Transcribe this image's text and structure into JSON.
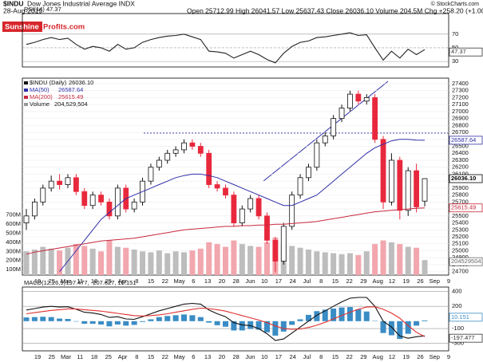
{
  "header": {
    "symbol": "$INDU",
    "name": "Dow Jones Industrial Average INDX",
    "date": "28-Aug-2019",
    "quote": "Open 25712.99 High 26041.57 Low 25637.43 Close 26036.10 Volume 204.5M Chg +258.20 (+1.00%)",
    "credit": "© StockCharts.com"
  },
  "logo": {
    "part1": "Sunshine",
    "part2": "Profits.com"
  },
  "chart_data": [
    {
      "type": "line",
      "title": "RSI(14)",
      "ylim": [
        22,
        100
      ],
      "yticks": [
        30,
        50,
        70
      ],
      "series": [
        {
          "name": "RSI(14)",
          "color": "#222222",
          "value_label": "47.37",
          "values": [
            55,
            58,
            62,
            65,
            62,
            64,
            55,
            48,
            52,
            50,
            45,
            55,
            48,
            50,
            58,
            62,
            65,
            67,
            68,
            70,
            66,
            62,
            45,
            44,
            42,
            35,
            40,
            45,
            40,
            33,
            28,
            42,
            52,
            58,
            60,
            65,
            66,
            68,
            70,
            72,
            68,
            69,
            50,
            32,
            45,
            35,
            48,
            40,
            47.37
          ]
        }
      ]
    },
    {
      "type": "candlestick",
      "title": "$INDU (Daily)",
      "last_label": "26036.10",
      "ylim": [
        24650,
        27480
      ],
      "yticks": [
        24700,
        24800,
        24900,
        25000,
        25100,
        25200,
        25300,
        25400,
        25500,
        25600,
        25700,
        25800,
        25900,
        26000,
        26100,
        26200,
        26300,
        26400,
        26500,
        26600,
        26700,
        26800,
        26900,
        27000,
        27100,
        27200,
        27300,
        27400
      ],
      "grid": true,
      "up_color": "#ffffff",
      "down_color": "#e8283c",
      "reference_line": 26690,
      "open": [
        25400,
        25500,
        25700,
        25900,
        26000,
        25950,
        26050,
        25850,
        25650,
        25800,
        25700,
        25500,
        25900,
        25600,
        25700,
        26000,
        26200,
        26300,
        26400,
        26450,
        26550,
        26500,
        26400,
        25950,
        25900,
        25800,
        25400,
        25600,
        25750,
        25500,
        25150,
        24850,
        25350,
        25800,
        26050,
        26200,
        26550,
        26650,
        26900,
        27050,
        27250,
        27150,
        27200,
        26600,
        25700,
        26300,
        25580,
        26150,
        25712.99
      ],
      "high": [
        25600,
        25750,
        25950,
        26080,
        26100,
        26100,
        26100,
        25900,
        25850,
        25850,
        25750,
        25950,
        25950,
        25750,
        26050,
        26250,
        26350,
        26450,
        26500,
        26600,
        26600,
        26550,
        26450,
        26000,
        25950,
        25850,
        25650,
        25800,
        25800,
        25550,
        25200,
        25400,
        25850,
        26100,
        26250,
        26600,
        26700,
        26950,
        27100,
        27300,
        27300,
        27250,
        27250,
        26650,
        26400,
        26350,
        26200,
        26250,
        26041.57
      ],
      "low": [
        25300,
        25450,
        25650,
        25850,
        25880,
        25900,
        25800,
        25600,
        25600,
        25650,
        25450,
        25450,
        25550,
        25550,
        25650,
        25950,
        26150,
        26250,
        26350,
        26400,
        26450,
        26350,
        25900,
        25850,
        25750,
        25350,
        25350,
        25550,
        25450,
        25100,
        24700,
        24800,
        25300,
        25750,
        26000,
        26150,
        26500,
        26600,
        26850,
        27000,
        27100,
        27100,
        26550,
        25600,
        25650,
        25450,
        25500,
        25550,
        25637.43
      ],
      "close": [
        25500,
        25700,
        25900,
        26000,
        25950,
        26050,
        25850,
        25650,
        25800,
        25700,
        25500,
        25900,
        25600,
        25700,
        26000,
        26200,
        26300,
        26400,
        26450,
        26550,
        26500,
        26400,
        25950,
        25900,
        25800,
        25400,
        25600,
        25750,
        25500,
        25150,
        24850,
        25350,
        25800,
        26050,
        26200,
        26550,
        26650,
        26900,
        27050,
        27250,
        27150,
        27200,
        26600,
        25700,
        26300,
        25580,
        26150,
        25630,
        26036.1
      ],
      "series": [
        {
          "name": "MA(50)",
          "color": "#2e2ea8",
          "value_label": "26587.64",
          "values": [
            null,
            null,
            null,
            null,
            24700,
            24850,
            25000,
            25150,
            25300,
            25450,
            25550,
            25650,
            25750,
            25800,
            25850,
            25900,
            25950,
            26000,
            26050,
            26080,
            26100,
            26100,
            26080,
            26050,
            26000,
            25950,
            25900,
            25850,
            25800,
            25750,
            25700,
            25650,
            25650,
            25700,
            25750,
            25800,
            25900,
            26000,
            26100,
            26200,
            26300,
            26400,
            26480,
            26530,
            26580,
            26600,
            26600,
            26590,
            26587.64
          ]
        },
        {
          "name": "MA(200)",
          "color": "#c8283c",
          "value_label": "25615.49",
          "values": [
            24950,
            24980,
            25000,
            25020,
            25040,
            25060,
            25080,
            25100,
            25120,
            25140,
            25150,
            25160,
            25170,
            25180,
            25200,
            25220,
            25240,
            25260,
            25280,
            25300,
            25310,
            25320,
            25330,
            25340,
            25350,
            25350,
            25360,
            25360,
            25370,
            25370,
            25380,
            25380,
            25390,
            25400,
            25410,
            25420,
            25440,
            25460,
            25480,
            25500,
            25520,
            25540,
            25560,
            25570,
            25580,
            25590,
            25600,
            25610,
            25615.49
          ]
        }
      ],
      "volume": {
        "name": "Volume",
        "value_label": "204,529,504",
        "box_label": "204529504",
        "up_color": "#bdbdbd",
        "down_color": "#f2a6ae",
        "ylim": [
          40,
          2200
        ],
        "yticks": [
          {
            "value": 100,
            "label": "100M"
          },
          {
            "value": 200,
            "label": "200M"
          },
          {
            "value": 300,
            "label": "300M"
          },
          {
            "value": 400,
            "label": "400M"
          },
          {
            "value": 500,
            "label": "500M"
          },
          {
            "value": 600,
            "label": "600M"
          },
          {
            "value": 700,
            "label": "700M"
          }
        ],
        "values": [
          300,
          320,
          350,
          330,
          310,
          340,
          380,
          360,
          330,
          300,
          420,
          350,
          340,
          320,
          300,
          290,
          310,
          280,
          300,
          290,
          310,
          330,
          400,
          380,
          350,
          420,
          380,
          360,
          350,
          400,
          450,
          380,
          360,
          340,
          320,
          300,
          290,
          280,
          270,
          280,
          260,
          300,
          380,
          420,
          400,
          380,
          350,
          340,
          204.529504
        ]
      },
      "xtick_labels": [
        "19",
        "25",
        "Mar",
        "11",
        "18",
        "25",
        "Apr",
        "8",
        "15",
        "22",
        "May",
        "6",
        "13",
        "20",
        "28",
        "Jun",
        "10",
        "17",
        "24",
        "Jul",
        "8",
        "15",
        "22",
        "29",
        "Aug",
        "12",
        "19",
        "26",
        "Sep",
        "9"
      ]
    },
    {
      "type": "line",
      "title": "MACD(12,26,9)",
      "values_text": "-197.477, -207.627, 10.151",
      "ylim": [
        -400,
        460
      ],
      "yticks": [
        400,
        200,
        -100,
        -300
      ],
      "series": [
        {
          "name": "MACD",
          "color": "#111111",
          "value_label": "-197.477",
          "values": [
            150,
            170,
            190,
            200,
            190,
            195,
            160,
            120,
            110,
            90,
            50,
            60,
            30,
            25,
            60,
            100,
            140,
            170,
            200,
            230,
            240,
            230,
            150,
            100,
            60,
            -20,
            -50,
            -60,
            -100,
            -170,
            -260,
            -240,
            -160,
            -80,
            0,
            80,
            140,
            200,
            260,
            310,
            320,
            320,
            200,
            0,
            -80,
            -200,
            -230,
            -210,
            -197.477
          ]
        },
        {
          "name": "Signal",
          "color": "#e03030",
          "values": [
            100,
            115,
            130,
            145,
            155,
            165,
            165,
            155,
            145,
            135,
            120,
            105,
            90,
            75,
            70,
            75,
            85,
            100,
            120,
            140,
            160,
            175,
            170,
            155,
            135,
            105,
            75,
            45,
            15,
            -20,
            -65,
            -100,
            -110,
            -105,
            -85,
            -55,
            -15,
            30,
            75,
            120,
            160,
            190,
            195,
            160,
            110,
            40,
            -60,
            -150,
            -207.627
          ]
        }
      ],
      "histogram": {
        "color": "#3a8cc4",
        "value_label": "10.151",
        "values": [
          50,
          55,
          60,
          55,
          35,
          30,
          -5,
          -35,
          -35,
          -45,
          -70,
          -45,
          -60,
          -50,
          -10,
          25,
          55,
          70,
          80,
          90,
          80,
          55,
          -20,
          -55,
          -75,
          -125,
          -125,
          -105,
          -115,
          -150,
          -195,
          -140,
          -50,
          25,
          85,
          135,
          155,
          170,
          185,
          190,
          160,
          130,
          5,
          -160,
          -190,
          -240,
          -170,
          -60,
          10.151
        ]
      },
      "xtick_labels": [
        "19",
        "25",
        "Mar",
        "11",
        "18",
        "25",
        "Apr",
        "8",
        "15",
        "22",
        "May",
        "6",
        "13",
        "20",
        "28",
        "Jun",
        "10",
        "17",
        "24",
        "Jul",
        "8",
        "15",
        "22",
        "29",
        "Aug",
        "12",
        "19",
        "26",
        "Sep",
        "9"
      ]
    }
  ]
}
